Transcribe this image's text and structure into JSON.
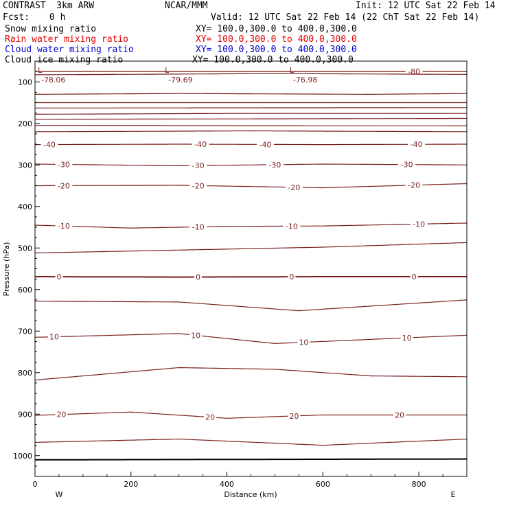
{
  "header": {
    "model": "CONTRAST  3km ARW",
    "center": "NCAR/MMM",
    "init": "Init: 12 UTC Sat 22 Feb 14",
    "fcst_label": "Fcst:",
    "fcst_value": "0 h",
    "valid": "Valid: 12 UTC Sat 22 Feb 14 (22 ChT Sat 22 Feb 14)"
  },
  "legend": [
    {
      "name": "Snow mixing ratio",
      "xy": "XY= 100.0,300.0 to 400.0,300.0",
      "color": "#000000"
    },
    {
      "name": "Rain water mixing ratio",
      "xy": "XY= 100.0,300.0 to 400.0,300.0",
      "color": "#e00000"
    },
    {
      "name": "Cloud water mixing ratio",
      "xy": "XY= 100.0,300.0 to 400.0,300.0",
      "color": "#0000c8"
    },
    {
      "name": "Cloud ice mixing ratio",
      "xy": "XY= 100.0,300.0 to 400.0,300.0",
      "color": "#000000"
    }
  ],
  "colors": {
    "contour": "#7a1e1e",
    "frame": "#000000"
  },
  "chart_data": {
    "type": "line",
    "xlabel": "Distance (km)",
    "ylabel": "Pressure (hPa)",
    "xlim": [
      0,
      900
    ],
    "ylim": [
      1050,
      50
    ],
    "xticks": [
      0,
      200,
      400,
      600,
      800
    ],
    "yticks": [
      100,
      200,
      300,
      400,
      500,
      600,
      700,
      800,
      900,
      1000
    ],
    "x_end_labels": {
      "left": "W",
      "right": "E"
    },
    "lows": [
      {
        "marker": "L",
        "value": "-78.06",
        "x": 20,
        "y": 85
      },
      {
        "marker": "L",
        "value": "-79.69",
        "x": 285,
        "y": 85
      },
      {
        "marker": "L",
        "value": "-76.98",
        "x": 545,
        "y": 85
      }
    ],
    "contours": [
      {
        "label": "-80",
        "label_x": 790,
        "points": [
          [
            0,
            75
          ],
          [
            900,
            75
          ]
        ]
      },
      {
        "label": "",
        "points": [
          [
            0,
            83
          ],
          [
            500,
            80
          ],
          [
            900,
            82
          ]
        ]
      },
      {
        "label": "",
        "points": [
          [
            0,
            130
          ],
          [
            300,
            128
          ],
          [
            700,
            130
          ],
          [
            900,
            128
          ]
        ]
      },
      {
        "label": "",
        "points": [
          [
            0,
            150
          ],
          [
            900,
            150
          ]
        ]
      },
      {
        "label": "",
        "points": [
          [
            0,
            163
          ],
          [
            900,
            162
          ]
        ]
      },
      {
        "label": "",
        "points": [
          [
            0,
            178
          ],
          [
            400,
            176
          ],
          [
            900,
            176
          ]
        ]
      },
      {
        "label": "",
        "points": [
          [
            0,
            190
          ],
          [
            500,
            189
          ],
          [
            900,
            188
          ]
        ]
      },
      {
        "label": "",
        "points": [
          [
            0,
            205
          ],
          [
            900,
            206
          ]
        ]
      },
      {
        "label": "",
        "points": [
          [
            0,
            220
          ],
          [
            450,
            218
          ],
          [
            900,
            220
          ]
        ]
      },
      {
        "label": "-40",
        "label_x": [
          30,
          345,
          480,
          795
        ],
        "points": [
          [
            0,
            251
          ],
          [
            300,
            250
          ],
          [
            600,
            251
          ],
          [
            900,
            250
          ]
        ]
      },
      {
        "label": "-30",
        "label_x": [
          60,
          340,
          500,
          775
        ],
        "points": [
          [
            0,
            298
          ],
          [
            300,
            302
          ],
          [
            600,
            298
          ],
          [
            900,
            300
          ]
        ]
      },
      {
        "label": "-20",
        "label_x": [
          60,
          340,
          540,
          790
        ],
        "points": [
          [
            0,
            350
          ],
          [
            300,
            349
          ],
          [
            600,
            355
          ],
          [
            900,
            345
          ]
        ]
      },
      {
        "label": "-10",
        "label_x": [
          60,
          340,
          535,
          800
        ],
        "points": [
          [
            0,
            445
          ],
          [
            200,
            452
          ],
          [
            400,
            448
          ],
          [
            600,
            447
          ],
          [
            900,
            440
          ]
        ]
      },
      {
        "label": "",
        "points": [
          [
            0,
            512
          ],
          [
            300,
            505
          ],
          [
            600,
            498
          ],
          [
            900,
            487
          ]
        ]
      },
      {
        "label": "0",
        "label_x": [
          50,
          340,
          535,
          790
        ],
        "points": [
          [
            0,
            569
          ],
          [
            300,
            570
          ],
          [
            600,
            569
          ],
          [
            900,
            569
          ]
        ],
        "bold": true
      },
      {
        "label": "",
        "points": [
          [
            0,
            628
          ],
          [
            300,
            630
          ],
          [
            550,
            651
          ],
          [
            900,
            625
          ]
        ]
      },
      {
        "label": "10",
        "label_x": [
          40,
          335,
          560,
          775
        ],
        "points": [
          [
            0,
            715
          ],
          [
            300,
            706
          ],
          [
            500,
            730
          ],
          [
            700,
            720
          ],
          [
            900,
            710
          ]
        ]
      },
      {
        "label": "",
        "points": [
          [
            0,
            818
          ],
          [
            300,
            788
          ],
          [
            500,
            792
          ],
          [
            700,
            808
          ],
          [
            900,
            810
          ]
        ]
      },
      {
        "label": "20",
        "label_x": [
          55,
          365,
          540,
          760
        ],
        "points": [
          [
            0,
            903
          ],
          [
            200,
            895
          ],
          [
            400,
            910
          ],
          [
            600,
            902
          ],
          [
            900,
            902
          ]
        ]
      },
      {
        "label": "",
        "points": [
          [
            0,
            968
          ],
          [
            300,
            960
          ],
          [
            600,
            975
          ],
          [
            900,
            960
          ]
        ]
      },
      {
        "label": "",
        "points": [
          [
            0,
            1010
          ],
          [
            900,
            1008
          ]
        ],
        "bold": true,
        "color": "#000000"
      }
    ]
  }
}
